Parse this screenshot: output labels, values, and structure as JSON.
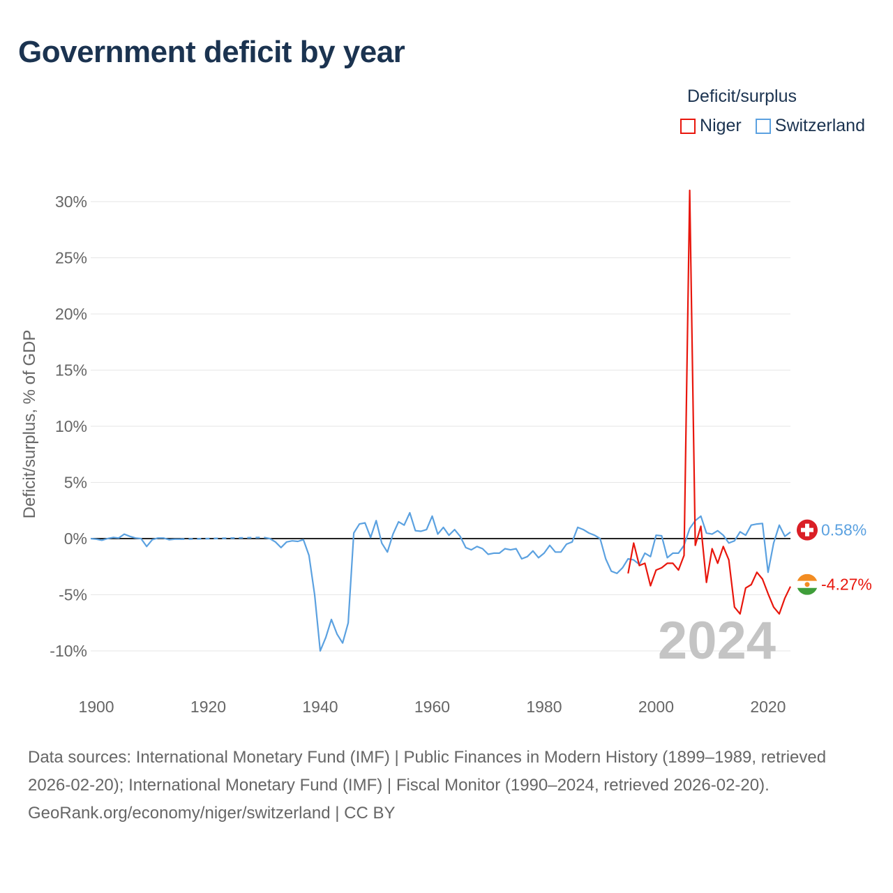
{
  "title": "Government deficit by year",
  "legend": {
    "title": "Deficit/surplus",
    "entries": [
      {
        "label": "Niger",
        "color": "#e8160c"
      },
      {
        "label": "Switzerland",
        "color": "#5ba1e0"
      }
    ]
  },
  "chart_data": {
    "type": "line",
    "ylabel": "Deficit/surplus, % of GDP",
    "xlabel": "",
    "xlim": [
      1899,
      2024
    ],
    "ylim": [
      -12,
      31
    ],
    "x_ticks": [
      1900,
      1920,
      1940,
      1960,
      1980,
      2000,
      2020
    ],
    "y_ticks": [
      30,
      25,
      20,
      15,
      10,
      5,
      0,
      -5,
      -10
    ],
    "y_tick_labels": [
      "30%",
      "25%",
      "20%",
      "15%",
      "10%",
      "5%",
      "0%",
      "-5%",
      "-10%"
    ],
    "current_year": "2024",
    "series": [
      {
        "name": "Switzerland",
        "color": "#5ba1e0",
        "end_label": "0.58%",
        "flag_icon": "switzerland-flag-icon",
        "gap_dashed": [
          [
            1915,
            1930
          ]
        ],
        "points": [
          [
            1899,
            0.0
          ],
          [
            1900,
            -0.05
          ],
          [
            1901,
            -0.15
          ],
          [
            1902,
            0.0
          ],
          [
            1903,
            0.1
          ],
          [
            1904,
            0.05
          ],
          [
            1905,
            0.4
          ],
          [
            1906,
            0.2
          ],
          [
            1907,
            0.05
          ],
          [
            1908,
            0.0
          ],
          [
            1909,
            -0.7
          ],
          [
            1910,
            -0.1
          ],
          [
            1911,
            0.05
          ],
          [
            1912,
            0.05
          ],
          [
            1913,
            -0.1
          ],
          [
            1914,
            -0.05
          ],
          [
            1915,
            -0.05
          ],
          [
            1930,
            0.1
          ],
          [
            1931,
            0.0
          ],
          [
            1932,
            -0.3
          ],
          [
            1933,
            -0.8
          ],
          [
            1934,
            -0.3
          ],
          [
            1935,
            -0.2
          ],
          [
            1936,
            -0.25
          ],
          [
            1937,
            -0.1
          ],
          [
            1938,
            -1.5
          ],
          [
            1939,
            -5.0
          ],
          [
            1940,
            -10.0
          ],
          [
            1941,
            -8.8
          ],
          [
            1942,
            -7.2
          ],
          [
            1943,
            -8.5
          ],
          [
            1944,
            -9.3
          ],
          [
            1945,
            -7.5
          ],
          [
            1946,
            0.5
          ],
          [
            1947,
            1.3
          ],
          [
            1948,
            1.4
          ],
          [
            1949,
            0.1
          ],
          [
            1950,
            1.6
          ],
          [
            1951,
            -0.4
          ],
          [
            1952,
            -1.2
          ],
          [
            1953,
            0.4
          ],
          [
            1954,
            1.5
          ],
          [
            1955,
            1.2
          ],
          [
            1956,
            2.3
          ],
          [
            1957,
            0.7
          ],
          [
            1958,
            0.65
          ],
          [
            1959,
            0.8
          ],
          [
            1960,
            2.0
          ],
          [
            1961,
            0.4
          ],
          [
            1962,
            1.0
          ],
          [
            1963,
            0.3
          ],
          [
            1964,
            0.8
          ],
          [
            1965,
            0.2
          ],
          [
            1966,
            -0.8
          ],
          [
            1967,
            -1.0
          ],
          [
            1968,
            -0.7
          ],
          [
            1969,
            -0.9
          ],
          [
            1970,
            -1.4
          ],
          [
            1971,
            -1.3
          ],
          [
            1972,
            -1.3
          ],
          [
            1973,
            -0.9
          ],
          [
            1974,
            -1.0
          ],
          [
            1975,
            -0.9
          ],
          [
            1976,
            -1.8
          ],
          [
            1977,
            -1.6
          ],
          [
            1978,
            -1.1
          ],
          [
            1979,
            -1.7
          ],
          [
            1980,
            -1.3
          ],
          [
            1981,
            -0.6
          ],
          [
            1982,
            -1.2
          ],
          [
            1983,
            -1.2
          ],
          [
            1984,
            -0.5
          ],
          [
            1985,
            -0.3
          ],
          [
            1986,
            1.0
          ],
          [
            1987,
            0.8
          ],
          [
            1988,
            0.5
          ],
          [
            1989,
            0.3
          ],
          [
            1990,
            0.0
          ],
          [
            1991,
            -1.8
          ],
          [
            1992,
            -2.9
          ],
          [
            1993,
            -3.1
          ],
          [
            1994,
            -2.6
          ],
          [
            1995,
            -1.8
          ],
          [
            1996,
            -1.9
          ],
          [
            1997,
            -2.3
          ],
          [
            1998,
            -1.3
          ],
          [
            1999,
            -1.6
          ],
          [
            2000,
            0.3
          ],
          [
            2001,
            0.25
          ],
          [
            2002,
            -1.7
          ],
          [
            2003,
            -1.3
          ],
          [
            2004,
            -1.3
          ],
          [
            2005,
            -0.6
          ],
          [
            2006,
            0.9
          ],
          [
            2007,
            1.6
          ],
          [
            2008,
            2.0
          ],
          [
            2009,
            0.5
          ],
          [
            2010,
            0.4
          ],
          [
            2011,
            0.7
          ],
          [
            2012,
            0.3
          ],
          [
            2013,
            -0.4
          ],
          [
            2014,
            -0.2
          ],
          [
            2015,
            0.6
          ],
          [
            2016,
            0.3
          ],
          [
            2017,
            1.2
          ],
          [
            2018,
            1.3
          ],
          [
            2019,
            1.35
          ],
          [
            2020,
            -3.0
          ],
          [
            2021,
            -0.4
          ],
          [
            2022,
            1.2
          ],
          [
            2023,
            0.2
          ],
          [
            2024,
            0.58
          ]
        ]
      },
      {
        "name": "Niger",
        "color": "#e8160c",
        "end_label": "-4.27%",
        "flag_icon": "niger-flag-icon",
        "gap_dashed": [],
        "points": [
          [
            1995,
            -3.1
          ],
          [
            1996,
            -0.4
          ],
          [
            1997,
            -2.4
          ],
          [
            1998,
            -2.2
          ],
          [
            1999,
            -4.2
          ],
          [
            2000,
            -2.8
          ],
          [
            2001,
            -2.6
          ],
          [
            2002,
            -2.2
          ],
          [
            2003,
            -2.2
          ],
          [
            2004,
            -2.8
          ],
          [
            2005,
            -1.5
          ],
          [
            2006,
            31.0
          ],
          [
            2007,
            -0.6
          ],
          [
            2008,
            1.1
          ],
          [
            2009,
            -3.9
          ],
          [
            2010,
            -0.9
          ],
          [
            2011,
            -2.2
          ],
          [
            2012,
            -0.7
          ],
          [
            2013,
            -1.9
          ],
          [
            2014,
            -6.1
          ],
          [
            2015,
            -6.7
          ],
          [
            2016,
            -4.4
          ],
          [
            2017,
            -4.1
          ],
          [
            2018,
            -3.0
          ],
          [
            2019,
            -3.6
          ],
          [
            2020,
            -4.9
          ],
          [
            2021,
            -6.1
          ],
          [
            2022,
            -6.7
          ],
          [
            2023,
            -5.3
          ],
          [
            2024,
            -4.27
          ]
        ]
      }
    ]
  },
  "footer": {
    "sources": "Data sources: International Monetary Fund (IMF) | Public Finances in Modern History (1899–1989, retrieved 2026-02-20); International Monetary Fund (IMF) | Fiscal Monitor (1990–2024, retrieved 2026-02-20).",
    "credit": "GeoRank.org/economy/niger/switzerland | CC BY"
  }
}
